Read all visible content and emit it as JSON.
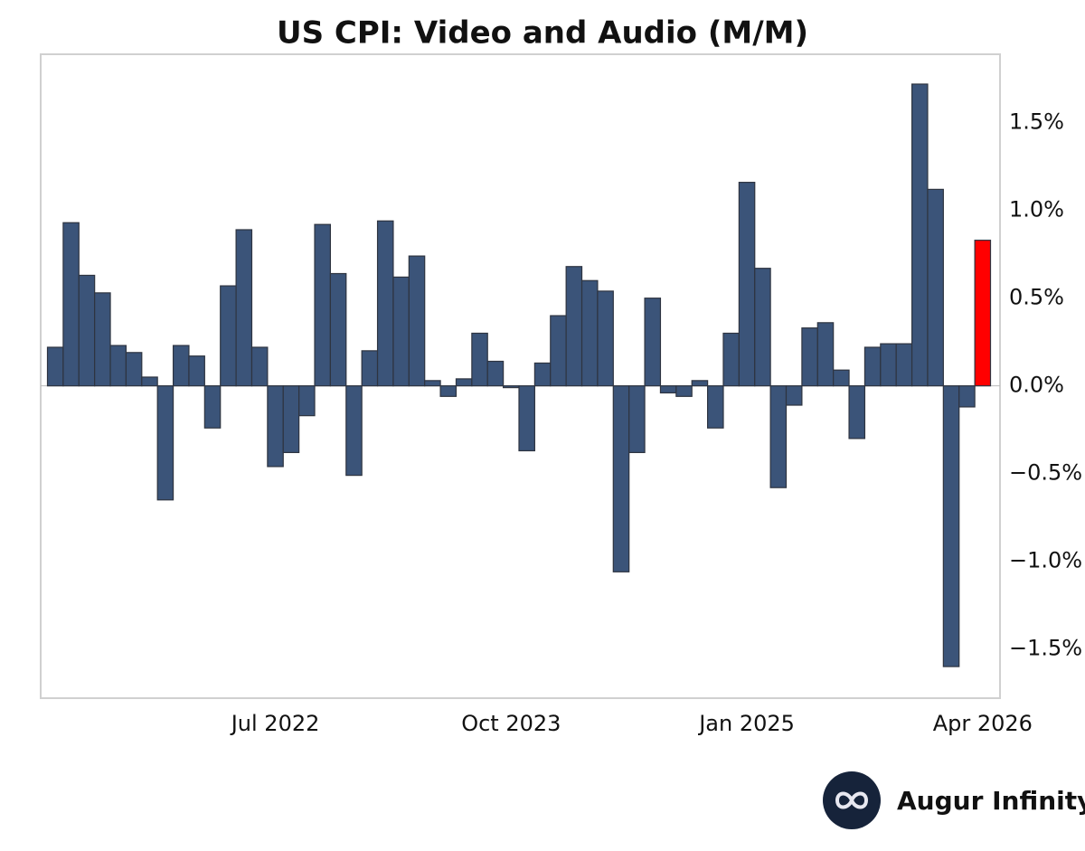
{
  "chart_data": {
    "type": "bar",
    "title": "US CPI: Video and Audio (M/M)",
    "categories": [
      null,
      null,
      null,
      null,
      null,
      null,
      null,
      null,
      null,
      null,
      null,
      null,
      null,
      null,
      "Jul 2022",
      null,
      null,
      null,
      null,
      null,
      null,
      null,
      null,
      null,
      null,
      null,
      null,
      null,
      null,
      "Oct 2023",
      null,
      null,
      null,
      null,
      null,
      null,
      null,
      null,
      null,
      null,
      null,
      null,
      null,
      null,
      "Jan 2025",
      null,
      null,
      null,
      null,
      null,
      null,
      null,
      null,
      null,
      null,
      null,
      null,
      null,
      null,
      "Apr 2026"
    ],
    "values": [
      0.22,
      0.93,
      0.63,
      0.53,
      0.23,
      0.19,
      0.05,
      -0.65,
      0.23,
      0.17,
      -0.24,
      0.57,
      0.89,
      0.22,
      -0.46,
      -0.38,
      -0.17,
      0.92,
      0.64,
      -0.51,
      0.2,
      0.94,
      0.62,
      0.74,
      0.03,
      -0.06,
      0.04,
      0.3,
      0.14,
      -0.01,
      -0.37,
      0.13,
      0.4,
      0.68,
      0.6,
      0.54,
      -1.06,
      -0.38,
      0.5,
      -0.04,
      -0.06,
      0.03,
      -0.24,
      0.3,
      1.16,
      0.67,
      -0.58,
      -0.11,
      0.33,
      0.36,
      0.09,
      -0.3,
      0.22,
      0.24,
      0.24,
      1.72,
      1.12,
      -1.6,
      -0.12,
      0.83
    ],
    "colors": [
      "#3b5479",
      "#3b5479",
      "#3b5479",
      "#3b5479",
      "#3b5479",
      "#3b5479",
      "#3b5479",
      "#3b5479",
      "#3b5479",
      "#3b5479",
      "#3b5479",
      "#3b5479",
      "#3b5479",
      "#3b5479",
      "#3b5479",
      "#3b5479",
      "#3b5479",
      "#3b5479",
      "#3b5479",
      "#3b5479",
      "#3b5479",
      "#3b5479",
      "#3b5479",
      "#3b5479",
      "#3b5479",
      "#3b5479",
      "#3b5479",
      "#3b5479",
      "#3b5479",
      "#3b5479",
      "#3b5479",
      "#3b5479",
      "#3b5479",
      "#3b5479",
      "#3b5479",
      "#3b5479",
      "#3b5479",
      "#3b5479",
      "#3b5479",
      "#3b5479",
      "#3b5479",
      "#3b5479",
      "#3b5479",
      "#3b5479",
      "#3b5479",
      "#3b5479",
      "#3b5479",
      "#3b5479",
      "#3b5479",
      "#3b5479",
      "#3b5479",
      "#3b5479",
      "#3b5479",
      "#3b5479",
      "#3b5479",
      "#3b5479",
      "#3b5479",
      "#3b5479",
      "#3b5479",
      "#ff0000"
    ],
    "ylim": [
      -1.78,
      1.89
    ],
    "yticks": [
      {
        "value": -1.5,
        "label": "−1.5%"
      },
      {
        "value": -1.0,
        "label": "−1.0%"
      },
      {
        "value": -0.5,
        "label": "−0.5%"
      },
      {
        "value": 0,
        "label": "0.0%"
      },
      {
        "value": 0.5,
        "label": "0.5%"
      },
      {
        "value": 1.0,
        "label": "1.0%"
      },
      {
        "value": 1.5,
        "label": "1.5%"
      }
    ],
    "y_axis_side": "right",
    "grid": false
  },
  "brand": {
    "name": "Augur Infinity"
  }
}
